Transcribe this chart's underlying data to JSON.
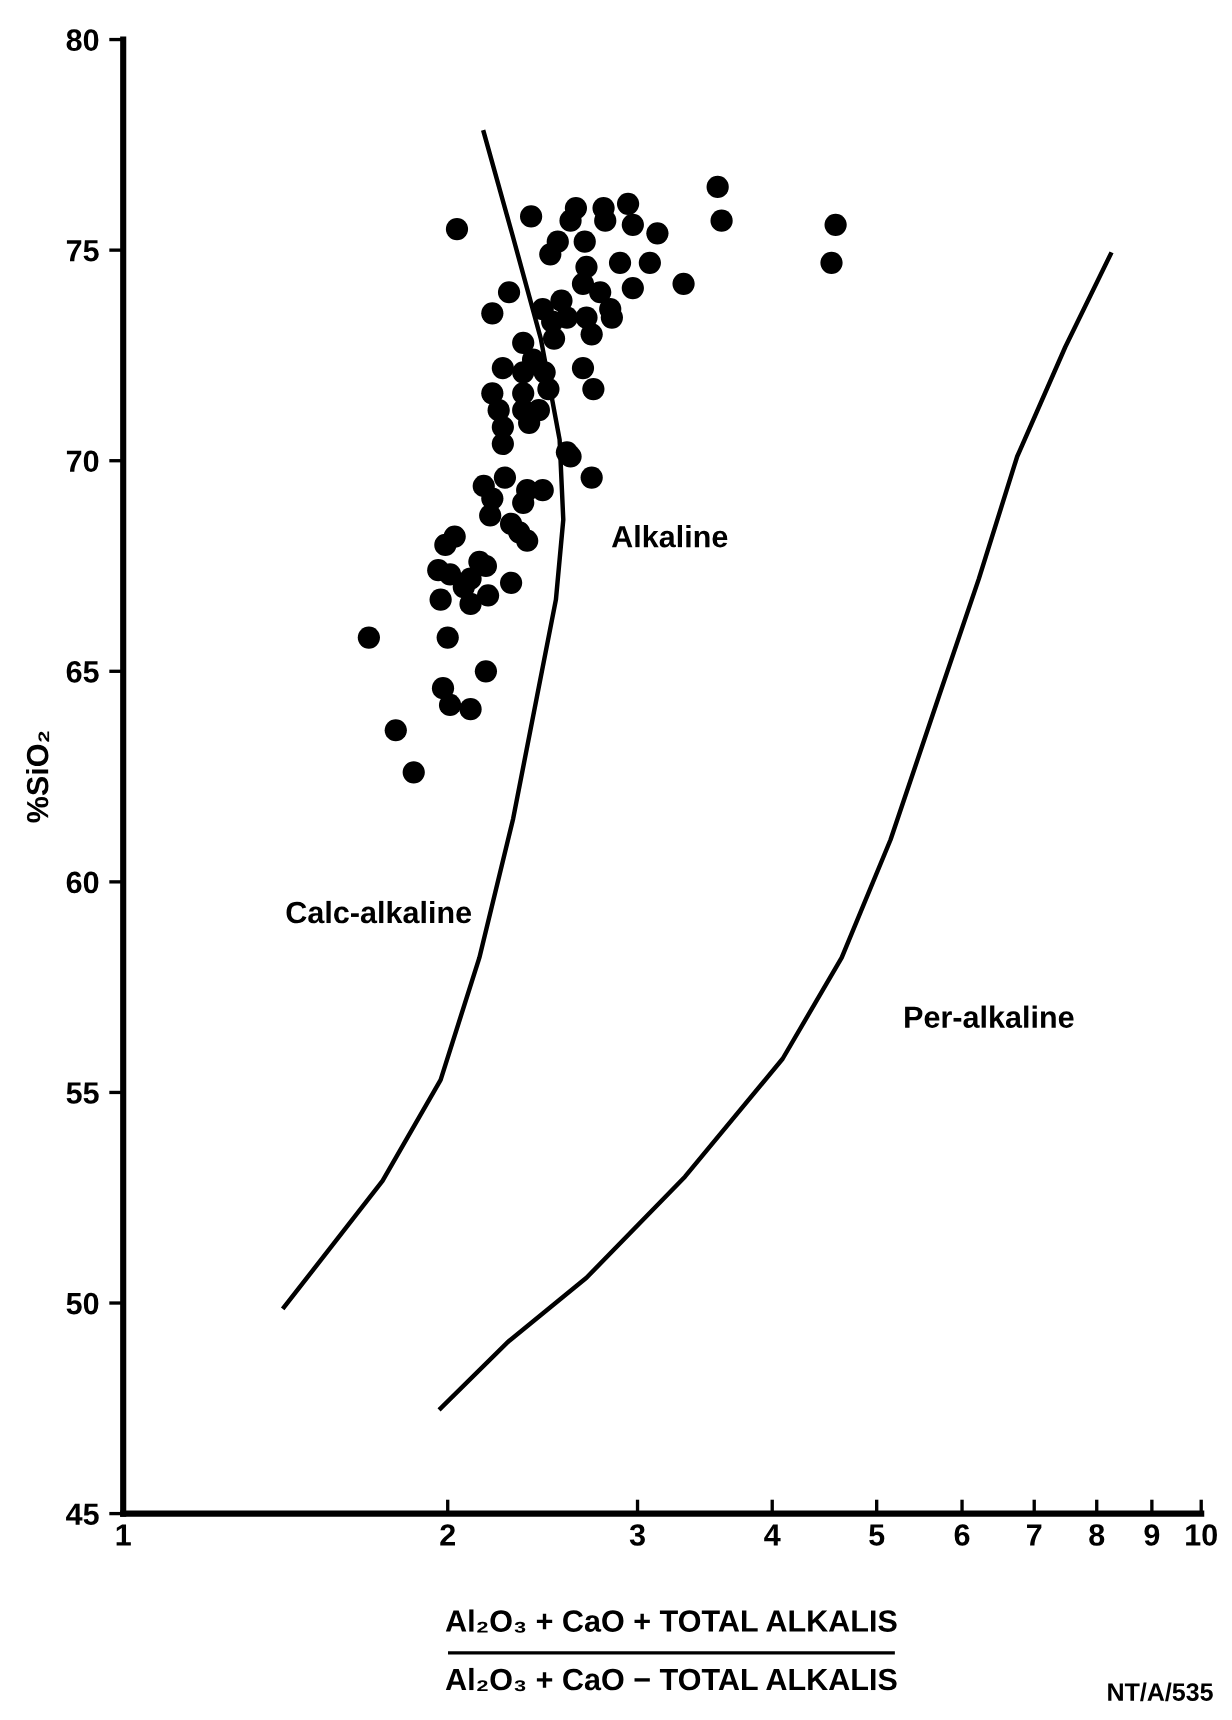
{
  "chart_data": {
    "type": "scatter",
    "xlabel": "Al₂O₃ + CaO + TOTAL ALKALIS\nAl₂O₃ + CaO − TOTAL ALKALIS",
    "ylabel": "%SiO₂",
    "log": "x",
    "xlim": [
      1,
      10
    ],
    "ylim": [
      45,
      80
    ],
    "xticks": [
      1,
      2,
      3,
      4,
      5,
      6,
      7,
      8,
      9,
      10
    ],
    "yticks": [
      45,
      50,
      55,
      60,
      65,
      70,
      75,
      80
    ],
    "grid": false,
    "legend": false,
    "marker": "circle",
    "series": [
      {
        "color": "#000000",
        "x": [
          2.04,
          2.39,
          2.63,
          2.6,
          2.79,
          2.8,
          2.94,
          2.97,
          3.13,
          2.68,
          2.53,
          2.49,
          2.89,
          3.08,
          3.31,
          2.97,
          2.28,
          2.69,
          2.67,
          2.77,
          2.83,
          2.84,
          2.2,
          2.45,
          2.55,
          2.5,
          2.58,
          2.69,
          2.72,
          2.51,
          2.35,
          2.4,
          2.25,
          2.35,
          2.46,
          2.67,
          2.48,
          2.73,
          2.2,
          2.35,
          2.23,
          2.35,
          2.43,
          2.25,
          2.38,
          2.25,
          2.58,
          3.56,
          3.59,
          4.58,
          4.54,
          2.6,
          2.72,
          2.26,
          2.16,
          2.37,
          2.45,
          2.2,
          2.35,
          2.19,
          2.29,
          2.33,
          2.37,
          2.03,
          1.99,
          1.96,
          2.01,
          2.14,
          2.17,
          2.1,
          2.07,
          2.29,
          1.97,
          2.1,
          2.18,
          1.69,
          2.0,
          2.17,
          1.98,
          2.01,
          2.1,
          1.79,
          1.86
        ],
        "values": [
          75.5,
          75.8,
          76.0,
          75.7,
          76.0,
          75.7,
          76.1,
          75.6,
          75.4,
          75.2,
          75.2,
          74.9,
          74.7,
          74.7,
          74.2,
          74.1,
          74.0,
          74.6,
          74.2,
          74.0,
          73.6,
          73.4,
          73.5,
          73.6,
          73.8,
          73.3,
          73.4,
          73.4,
          73.0,
          72.9,
          72.8,
          72.4,
          72.2,
          72.1,
          72.1,
          72.2,
          71.7,
          71.7,
          71.6,
          71.6,
          71.2,
          71.2,
          71.2,
          70.8,
          70.9,
          70.4,
          70.2,
          76.5,
          75.7,
          75.6,
          74.7,
          70.1,
          69.6,
          69.6,
          69.4,
          69.3,
          69.3,
          69.1,
          69.0,
          68.7,
          68.5,
          68.3,
          68.1,
          68.2,
          68.0,
          67.4,
          67.3,
          67.6,
          67.5,
          67.2,
          67.0,
          67.1,
          66.7,
          66.6,
          66.8,
          65.8,
          65.8,
          65.0,
          64.6,
          64.2,
          64.1,
          63.6,
          62.6
        ]
      },
      {
        "type": "line",
        "color": "#000000",
        "marker": "none",
        "line_style": "solid",
        "x": [
          2.16,
          2.3,
          2.44,
          2.54,
          2.56,
          2.52,
          2.42,
          2.3,
          2.14,
          1.97,
          1.74,
          1.41
        ],
        "values": [
          77.8,
          75.3,
          72.9,
          70.5,
          68.6,
          66.7,
          64.4,
          61.5,
          58.2,
          55.3,
          52.9,
          49.9
        ]
      },
      {
        "type": "line",
        "color": "#000000",
        "marker": "none",
        "line_style": "solid",
        "x": [
          1.97,
          2.28,
          2.69,
          3.32,
          4.09,
          4.64,
          5.15,
          5.71,
          6.22,
          6.75,
          7.48,
          8.24
        ],
        "values": [
          47.5,
          49.1,
          50.6,
          53.0,
          55.8,
          58.2,
          61.0,
          64.4,
          67.2,
          70.1,
          72.7,
          74.9
        ]
      }
    ],
    "annotations": [
      "Calc-alkaline",
      "Alkaline",
      "Per-alkaline",
      "NT/A/535"
    ]
  }
}
